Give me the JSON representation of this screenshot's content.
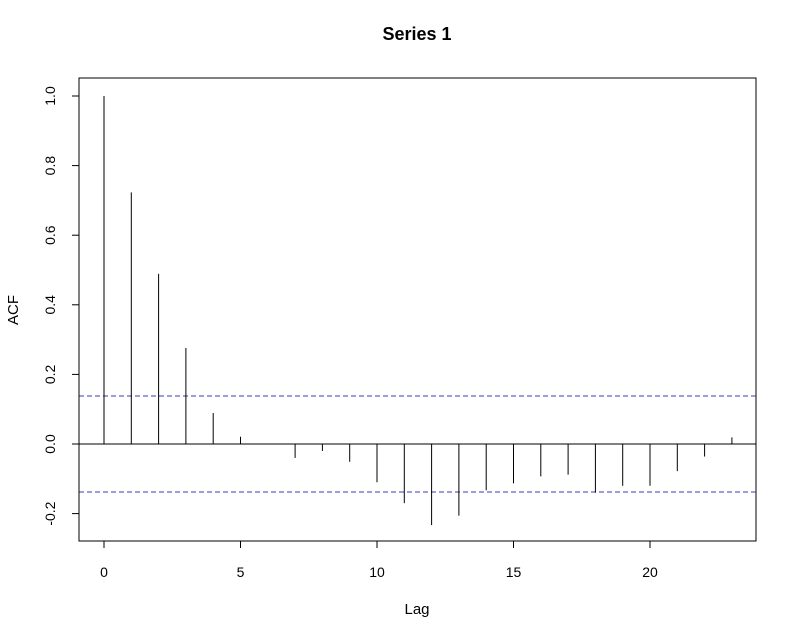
{
  "chart_data": {
    "type": "bar",
    "title": "Series 1",
    "xlabel": "Lag",
    "ylabel": "ACF",
    "xlim": [
      0,
      23
    ],
    "ylim": [
      -0.25,
      1.0
    ],
    "x_ticks": [
      0,
      5,
      10,
      15,
      20
    ],
    "x_tick_labels": [
      "0",
      "5",
      "10",
      "15",
      "20"
    ],
    "y_ticks": [
      -0.2,
      0.0,
      0.2,
      0.4,
      0.6,
      0.8,
      1.0
    ],
    "y_tick_labels": [
      "-0.2",
      "0.0",
      "0.2",
      "0.4",
      "0.6",
      "0.8",
      "1.0"
    ],
    "lags": [
      0,
      1,
      2,
      3,
      4,
      5,
      6,
      7,
      8,
      9,
      10,
      11,
      12,
      13,
      14,
      15,
      16,
      17,
      18,
      19,
      20,
      21,
      22,
      23
    ],
    "acf": [
      1.0,
      0.723,
      0.489,
      0.276,
      0.089,
      0.021,
      0.001,
      -0.04,
      -0.02,
      -0.051,
      -0.11,
      -0.17,
      -0.233,
      -0.206,
      -0.133,
      -0.113,
      -0.093,
      -0.088,
      -0.14,
      -0.12,
      -0.12,
      -0.078,
      -0.036,
      0.019
    ],
    "confidence_bound": 0.138,
    "colors": {
      "spike": "#000000",
      "ci_line": "#3b3bb8",
      "zero_line": "#000000"
    },
    "grid": false
  }
}
